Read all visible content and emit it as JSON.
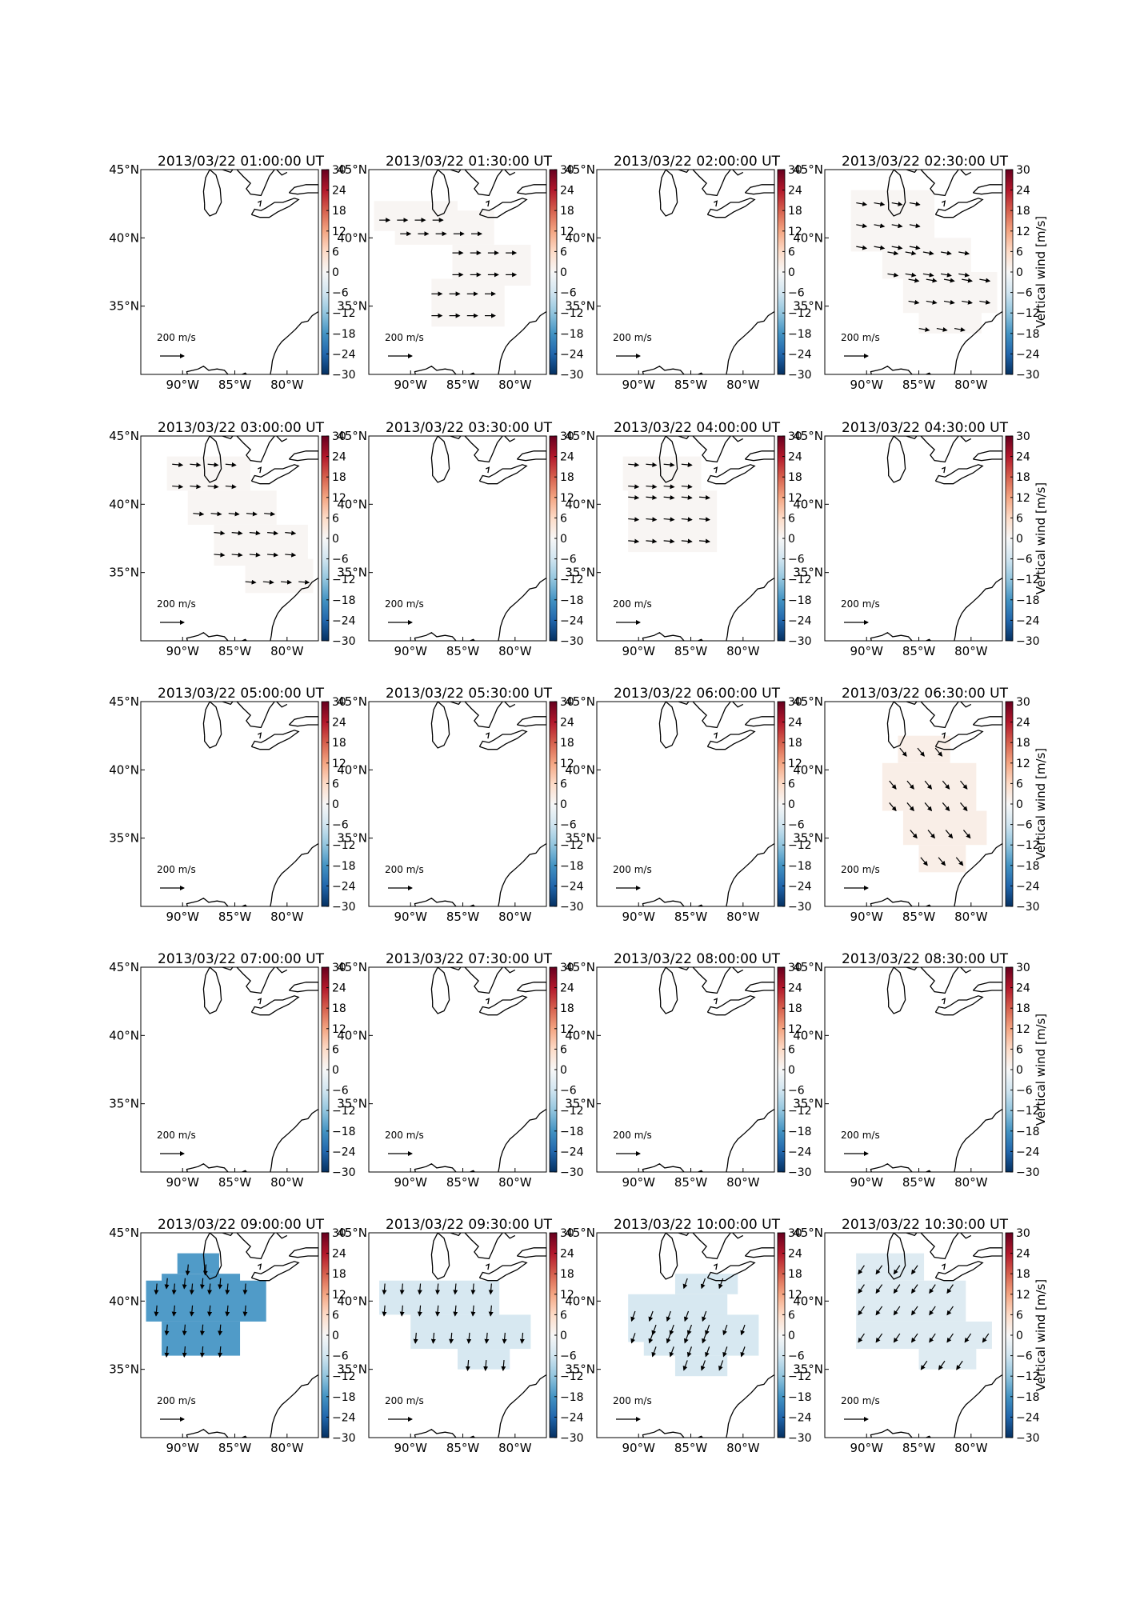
{
  "chart_data": {
    "type": "heatmap",
    "description_units": "vertical wind maps with horizontal wind vectors",
    "colorbar": {
      "label": "Vertical wind [m/s]",
      "min": -30,
      "max": 30,
      "ticks": [
        30,
        24,
        18,
        12,
        6,
        0,
        -6,
        -12,
        -18,
        -24,
        -30
      ],
      "colormap": "RdBu_r"
    },
    "map_axes": {
      "lon_range": [
        -94,
        -77
      ],
      "lat_range": [
        30,
        45
      ],
      "x_ticks": [
        {
          "value": -90,
          "label": "90°W"
        },
        {
          "value": -85,
          "label": "85°W"
        },
        {
          "value": -80,
          "label": "80°W"
        }
      ],
      "y_ticks": [
        {
          "value": 45,
          "label": "45°N"
        },
        {
          "value": 40,
          "label": "40°N"
        },
        {
          "value": 35,
          "label": "35°N"
        }
      ]
    },
    "reference_vector": {
      "value_label": "200",
      "unit_label": "m/s",
      "magnitude": 200
    },
    "panels": [
      {
        "title": "2013/03/22 01:00:00 UT",
        "value": null,
        "regions": [],
        "wind_direction_deg": 0
      },
      {
        "title": "2013/03/22 01:30:00 UT",
        "value": 0.5,
        "wind_direction_deg": 0,
        "regions": [
          {
            "lon_min": -93.5,
            "lon_max": -85.5,
            "lat_min": 40.5,
            "lat_max": 42.7
          },
          {
            "lon_min": -91.5,
            "lon_max": -82.0,
            "lat_min": 39.5,
            "lat_max": 42.0
          },
          {
            "lon_min": -86.0,
            "lon_max": -78.5,
            "lat_min": 36.5,
            "lat_max": 39.5
          },
          {
            "lon_min": -88.0,
            "lon_max": -81.0,
            "lat_min": 33.5,
            "lat_max": 37.0
          }
        ]
      },
      {
        "title": "2013/03/22 02:00:00 UT",
        "value": null,
        "regions": [],
        "wind_direction_deg": 0
      },
      {
        "title": "2013/03/22 02:30:00 UT",
        "value": 0.5,
        "wind_direction_deg": -10,
        "regions": [
          {
            "lon_min": -91.5,
            "lon_max": -83.5,
            "lat_min": 39.0,
            "lat_max": 43.5
          },
          {
            "lon_min": -88.5,
            "lon_max": -80.0,
            "lat_min": 37.0,
            "lat_max": 40.0
          },
          {
            "lon_min": -86.5,
            "lon_max": -77.5,
            "lat_min": 34.5,
            "lat_max": 37.5
          },
          {
            "lon_min": -85.0,
            "lon_max": -79.0,
            "lat_min": 33.0,
            "lat_max": 35.0
          }
        ]
      },
      {
        "title": "2013/03/22 03:00:00 UT",
        "value": 0.5,
        "wind_direction_deg": -5,
        "regions": [
          {
            "lon_min": -91.5,
            "lon_max": -83.5,
            "lat_min": 41.0,
            "lat_max": 43.5
          },
          {
            "lon_min": -89.5,
            "lon_max": -81.0,
            "lat_min": 38.5,
            "lat_max": 41.0
          },
          {
            "lon_min": -87.0,
            "lon_max": -78.0,
            "lat_min": 35.5,
            "lat_max": 38.5
          },
          {
            "lon_min": -84.0,
            "lon_max": -77.5,
            "lat_min": 33.5,
            "lat_max": 36.0
          }
        ]
      },
      {
        "title": "2013/03/22 03:30:00 UT",
        "value": null,
        "regions": [],
        "wind_direction_deg": 0
      },
      {
        "title": "2013/03/22 04:00:00 UT",
        "value": 0.5,
        "wind_direction_deg": -5,
        "regions": [
          {
            "lon_min": -91.5,
            "lon_max": -84.0,
            "lat_min": 41.0,
            "lat_max": 43.5
          },
          {
            "lon_min": -91.0,
            "lon_max": -82.5,
            "lat_min": 36.5,
            "lat_max": 41.0
          }
        ]
      },
      {
        "title": "2013/03/22 04:30:00 UT",
        "value": null,
        "regions": [],
        "wind_direction_deg": 0
      },
      {
        "title": "2013/03/22 05:00:00 UT",
        "value": null,
        "regions": [],
        "wind_direction_deg": 0
      },
      {
        "title": "2013/03/22 05:30:00 UT",
        "value": null,
        "regions": [],
        "wind_direction_deg": 0
      },
      {
        "title": "2013/03/22 06:00:00 UT",
        "value": null,
        "regions": [],
        "wind_direction_deg": 0
      },
      {
        "title": "2013/03/22 06:30:00 UT",
        "value": 2,
        "wind_direction_deg": -50,
        "regions": [
          {
            "lon_min": -87.0,
            "lon_max": -82.0,
            "lat_min": 40.5,
            "lat_max": 42.5
          },
          {
            "lon_min": -88.5,
            "lon_max": -79.5,
            "lat_min": 37.0,
            "lat_max": 40.5
          },
          {
            "lon_min": -86.5,
            "lon_max": -78.5,
            "lat_min": 34.5,
            "lat_max": 37.0
          },
          {
            "lon_min": -85.0,
            "lon_max": -80.5,
            "lat_min": 32.5,
            "lat_max": 34.5
          }
        ]
      },
      {
        "title": "2013/03/22 07:00:00 UT",
        "value": null,
        "regions": [],
        "wind_direction_deg": 0
      },
      {
        "title": "2013/03/22 07:30:00 UT",
        "value": null,
        "regions": [],
        "wind_direction_deg": 0
      },
      {
        "title": "2013/03/22 08:00:00 UT",
        "value": null,
        "regions": [],
        "wind_direction_deg": 0
      },
      {
        "title": "2013/03/22 08:30:00 UT",
        "value": null,
        "regions": [],
        "wind_direction_deg": 0
      },
      {
        "title": "2013/03/22 09:00:00 UT",
        "value": -17,
        "wind_direction_deg": -95,
        "regions": [
          {
            "lon_min": -90.5,
            "lon_max": -86.5,
            "lat_min": 42.0,
            "lat_max": 43.5
          },
          {
            "lon_min": -92.0,
            "lon_max": -84.5,
            "lat_min": 40.5,
            "lat_max": 42.0
          },
          {
            "lon_min": -93.5,
            "lon_max": -82.0,
            "lat_min": 38.5,
            "lat_max": 41.5
          },
          {
            "lon_min": -92.0,
            "lon_max": -84.5,
            "lat_min": 36.0,
            "lat_max": 38.5
          }
        ]
      },
      {
        "title": "2013/03/22 09:30:00 UT",
        "value": -5,
        "wind_direction_deg": -95,
        "regions": [
          {
            "lon_min": -93.0,
            "lon_max": -81.5,
            "lat_min": 39.0,
            "lat_max": 41.5
          },
          {
            "lon_min": -90.0,
            "lon_max": -78.5,
            "lat_min": 36.5,
            "lat_max": 39.0
          },
          {
            "lon_min": -85.5,
            "lon_max": -80.5,
            "lat_min": 35.0,
            "lat_max": 36.5
          }
        ]
      },
      {
        "title": "2013/03/22 10:00:00 UT",
        "value": -5,
        "wind_direction_deg": -110,
        "regions": [
          {
            "lon_min": -86.5,
            "lon_max": -80.5,
            "lat_min": 40.5,
            "lat_max": 42.0
          },
          {
            "lon_min": -91.0,
            "lon_max": -81.5,
            "lat_min": 37.0,
            "lat_max": 40.5
          },
          {
            "lon_min": -89.5,
            "lon_max": -78.5,
            "lat_min": 36.0,
            "lat_max": 39.0
          },
          {
            "lon_min": -86.5,
            "lon_max": -81.5,
            "lat_min": 34.5,
            "lat_max": 36.0
          }
        ]
      },
      {
        "title": "2013/03/22 10:30:00 UT",
        "value": -4,
        "wind_direction_deg": -125,
        "regions": [
          {
            "lon_min": -91.0,
            "lon_max": -84.5,
            "lat_min": 41.5,
            "lat_max": 43.5
          },
          {
            "lon_min": -91.0,
            "lon_max": -80.5,
            "lat_min": 38.5,
            "lat_max": 41.5
          },
          {
            "lon_min": -91.0,
            "lon_max": -78.0,
            "lat_min": 36.5,
            "lat_max": 38.5
          },
          {
            "lon_min": -85.0,
            "lon_max": -79.5,
            "lat_min": 35.0,
            "lat_max": 36.5
          }
        ]
      }
    ]
  }
}
